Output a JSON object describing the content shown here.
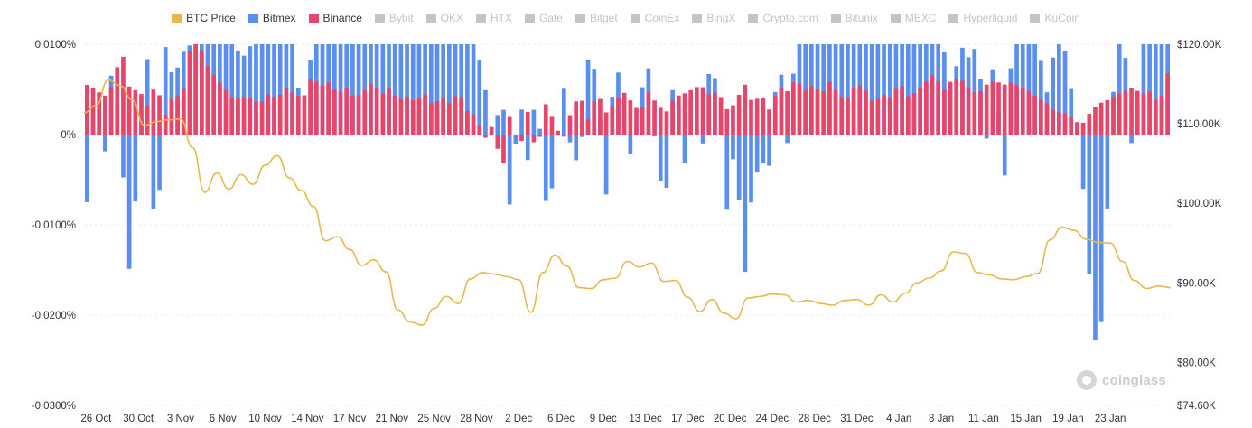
{
  "chart_data": {
    "type": "bar+line",
    "legend": [
      {
        "name": "BTC Price",
        "color": "#e8b84a",
        "active": true
      },
      {
        "name": "Bitmex",
        "color": "#5a8ff0",
        "active": true
      },
      {
        "name": "Binance",
        "color": "#e8456a",
        "active": true
      },
      {
        "name": "Bybit",
        "color": "#c4c4c4",
        "active": false
      },
      {
        "name": "OKX",
        "color": "#c4c4c4",
        "active": false
      },
      {
        "name": "HTX",
        "color": "#c4c4c4",
        "active": false
      },
      {
        "name": "Gate",
        "color": "#c4c4c4",
        "active": false
      },
      {
        "name": "Bitget",
        "color": "#c4c4c4",
        "active": false
      },
      {
        "name": "CoinEx",
        "color": "#c4c4c4",
        "active": false
      },
      {
        "name": "BingX",
        "color": "#c4c4c4",
        "active": false
      },
      {
        "name": "Crypto.com",
        "color": "#c4c4c4",
        "active": false
      },
      {
        "name": "Bitunix",
        "color": "#c4c4c4",
        "active": false
      },
      {
        "name": "MEXC",
        "color": "#c4c4c4",
        "active": false
      },
      {
        "name": "Hyperliquid",
        "color": "#c4c4c4",
        "active": false
      },
      {
        "name": "KuCoin",
        "color": "#c4c4c4",
        "active": false
      }
    ],
    "left_axis": {
      "ticks": [
        {
          "value": 0.01,
          "label": "0.0100%"
        },
        {
          "value": 0,
          "label": "0%"
        },
        {
          "value": -0.01,
          "label": "-0.0100%"
        },
        {
          "value": -0.02,
          "label": "-0.0200%"
        },
        {
          "value": -0.03,
          "label": "-0.0300%"
        }
      ],
      "range": [
        -0.03,
        0.01
      ]
    },
    "right_axis": {
      "ticks": [
        {
          "value": 120,
          "label": "$120.00K"
        },
        {
          "value": 110,
          "label": "$110.00K"
        },
        {
          "value": 100,
          "label": "$100.00K"
        },
        {
          "value": 90,
          "label": "$90.00K"
        },
        {
          "value": 80,
          "label": "$80.00K"
        },
        {
          "value": 74.6,
          "label": "$74.60K"
        }
      ],
      "range": [
        74.6,
        120
      ]
    },
    "x_labels": [
      "26 Oct",
      "30 Oct",
      "3 Nov",
      "6 Nov",
      "10 Nov",
      "14 Nov",
      "17 Nov",
      "21 Nov",
      "25 Nov",
      "28 Nov",
      "2 Dec",
      "6 Dec",
      "9 Dec",
      "13 Dec",
      "17 Dec",
      "20 Dec",
      "24 Dec",
      "28 Dec",
      "31 Dec",
      "4 Jan",
      "8 Jan",
      "11 Jan",
      "15 Jan",
      "19 Jan",
      "23 Jan"
    ],
    "x_start": "2025-10-25",
    "x_end": "2026-01-23",
    "grid": true,
    "bitmex_key": [
      -0.0075,
      0.0085,
      -0.003,
      0.009,
      -0.002,
      -0.0165,
      -0.001,
      0.0085,
      -0.016,
      0.01,
      0.006,
      0.009,
      0.01,
      0.01,
      0.01,
      0.01,
      0.01,
      0.01,
      0.0085,
      0.01,
      0.01,
      0.01,
      0.01,
      0.01,
      0.01,
      -0.001,
      0.01,
      0.01,
      0.01,
      0.01,
      0.01,
      0.01,
      0.01,
      0.01,
      0.01,
      0.01,
      0.01,
      0.01,
      0.01,
      0.01,
      0.01,
      0.01,
      0.01,
      0.01,
      0.01,
      0.01,
      0.0055,
      -0.001,
      0.0055,
      -0.0095,
      0.005,
      -0.003,
      0.0055,
      -0.0075,
      -0.0055,
      0.0065,
      -0.002,
      -0.0035,
      0.0088,
      0.0065,
      -0.0075,
      0.008,
      0.0055,
      -0.0035,
      0.0045,
      0.0075,
      -0.0045,
      -0.0065,
      0.009,
      -0.0045,
      0.0055,
      -0.0035,
      0.0075,
      0.0055,
      -0.0085,
      -0.0005,
      -0.0165,
      -0.0055,
      -0.003,
      -0.0035,
      0.01,
      -0.001,
      0.01,
      0.01,
      0.01,
      0.01,
      0.01,
      0.01,
      0.01,
      0.01,
      0.01,
      0.01,
      0.01,
      0.01,
      0.01,
      0.01,
      0.01,
      0.01,
      0.01,
      0.01,
      0.0045,
      0.01,
      0.0085,
      0.01,
      -0.001,
      0.01,
      -0.007,
      0.01,
      0.01,
      0.01,
      0.01,
      0.0045,
      0.01,
      0.01,
      0.004,
      -0.003,
      -0.0165,
      -0.0265,
      -0.0085,
      0.01,
      0.01,
      -0.0035,
      0.01,
      0.01,
      0.01,
      0.01
    ],
    "binance_key": [
      0.0055,
      0.005,
      0.0042,
      0.0055,
      0.0095,
      0.0048,
      0.005,
      0.0032,
      0.0058,
      0.002,
      0.0045,
      0.004,
      0.01,
      0.01,
      0.0075,
      0.0062,
      0.005,
      0.0038,
      0.0042,
      0.004,
      0.0034,
      0.0045,
      0.004,
      0.0052,
      0.0045,
      0.004,
      0.0065,
      0.0053,
      0.0058,
      0.0045,
      0.0052,
      0.004,
      0.0048,
      0.0058,
      0.0044,
      0.0052,
      0.0038,
      0.0042,
      0.0036,
      0.0046,
      0.0032,
      0.0042,
      0.0034,
      0.0048,
      0.0026,
      0.002,
      -0.0005,
      0.0012,
      -0.0045,
      0.0028,
      -0.002,
      0.0026,
      -0.0025,
      0.0035,
      0.0015,
      -0.0008,
      0.0026,
      0.0045,
      0.0016,
      0.0048,
      0.0024,
      0.0034,
      0.0048,
      0.0036,
      0.0024,
      0.0048,
      0.0032,
      0.0025,
      0.0042,
      0.0045,
      0.005,
      0.0055,
      0.0044,
      0.0048,
      0.0028,
      0.0034,
      0.0058,
      0.0034,
      0.0045,
      0.0026,
      0.0054,
      0.0048,
      0.0062,
      0.0048,
      0.0055,
      0.0045,
      0.006,
      0.0042,
      0.004,
      0.0058,
      0.005,
      0.0034,
      0.0045,
      0.004,
      0.0058,
      0.0042,
      0.0048,
      0.0058,
      0.0068,
      0.0048,
      0.006,
      0.0062,
      0.0052,
      0.0044,
      0.0055,
      0.006,
      0.0055,
      0.0058,
      0.0052,
      0.0048,
      0.004,
      0.0035,
      0.0025,
      0.0024,
      0.0018,
      0.001,
      0.0024,
      0.0034,
      0.0038,
      0.0044,
      0.0048,
      0.0052,
      0.0045,
      0.0048,
      0.0032,
      0.0068
    ],
    "price_key_date_K": [
      [
        "2025-10-25",
        111.4
      ],
      [
        "2025-10-26",
        112.3
      ],
      [
        "2025-10-27",
        115.5
      ],
      [
        "2025-10-28",
        114.8
      ],
      [
        "2025-10-29",
        113.0
      ],
      [
        "2025-10-30",
        109.8
      ],
      [
        "2025-10-31",
        110.3
      ],
      [
        "2025-11-01",
        110.5
      ],
      [
        "2025-11-02",
        110.6
      ],
      [
        "2025-11-03",
        107.0
      ],
      [
        "2025-11-04",
        101.4
      ],
      [
        "2025-11-05",
        103.8
      ],
      [
        "2025-11-06",
        101.8
      ],
      [
        "2025-11-07",
        103.6
      ],
      [
        "2025-11-08",
        102.4
      ],
      [
        "2025-11-09",
        104.8
      ],
      [
        "2025-11-10",
        106.0
      ],
      [
        "2025-11-11",
        103.2
      ],
      [
        "2025-11-12",
        101.6
      ],
      [
        "2025-11-13",
        99.6
      ],
      [
        "2025-11-14",
        95.3
      ],
      [
        "2025-11-15",
        95.8
      ],
      [
        "2025-11-16",
        94.2
      ],
      [
        "2025-11-17",
        92.2
      ],
      [
        "2025-11-18",
        92.9
      ],
      [
        "2025-11-19",
        91.4
      ],
      [
        "2025-11-20",
        86.6
      ],
      [
        "2025-11-21",
        85.1
      ],
      [
        "2025-11-22",
        84.7
      ],
      [
        "2025-11-23",
        86.8
      ],
      [
        "2025-11-24",
        88.3
      ],
      [
        "2025-11-25",
        87.4
      ],
      [
        "2025-11-26",
        90.5
      ],
      [
        "2025-11-27",
        91.3
      ],
      [
        "2025-11-28",
        91.1
      ],
      [
        "2025-11-29",
        90.8
      ],
      [
        "2025-11-30",
        90.4
      ],
      [
        "2025-12-01",
        86.3
      ],
      [
        "2025-12-02",
        91.3
      ],
      [
        "2025-12-03",
        93.5
      ],
      [
        "2025-12-04",
        92.1
      ],
      [
        "2025-12-05",
        89.4
      ],
      [
        "2025-12-06",
        89.3
      ],
      [
        "2025-12-07",
        90.4
      ],
      [
        "2025-12-08",
        90.6
      ],
      [
        "2025-12-09",
        92.7
      ],
      [
        "2025-12-10",
        92.0
      ],
      [
        "2025-12-11",
        92.5
      ],
      [
        "2025-12-12",
        90.2
      ],
      [
        "2025-12-13",
        90.3
      ],
      [
        "2025-12-14",
        88.2
      ],
      [
        "2025-12-15",
        86.4
      ],
      [
        "2025-12-16",
        87.9
      ],
      [
        "2025-12-17",
        86.2
      ],
      [
        "2025-12-18",
        85.5
      ],
      [
        "2025-12-19",
        88.1
      ],
      [
        "2025-12-20",
        88.3
      ],
      [
        "2025-12-21",
        88.6
      ],
      [
        "2025-12-22",
        88.5
      ],
      [
        "2025-12-23",
        87.6
      ],
      [
        "2025-12-24",
        87.8
      ],
      [
        "2025-12-25",
        87.4
      ],
      [
        "2025-12-26",
        87.2
      ],
      [
        "2025-12-27",
        87.8
      ],
      [
        "2025-12-28",
        87.9
      ],
      [
        "2025-12-29",
        87.2
      ],
      [
        "2025-12-30",
        88.5
      ],
      [
        "2025-12-31",
        87.6
      ],
      [
        "2026-01-01",
        88.7
      ],
      [
        "2026-01-02",
        90.0
      ],
      [
        "2026-01-03",
        90.6
      ],
      [
        "2026-01-04",
        91.5
      ],
      [
        "2026-01-05",
        93.9
      ],
      [
        "2026-01-06",
        93.7
      ],
      [
        "2026-01-07",
        91.3
      ],
      [
        "2026-01-08",
        91.0
      ],
      [
        "2026-01-09",
        90.5
      ],
      [
        "2026-01-10",
        90.4
      ],
      [
        "2026-01-11",
        90.8
      ],
      [
        "2026-01-12",
        91.2
      ],
      [
        "2026-01-13",
        95.4
      ],
      [
        "2026-01-14",
        97.0
      ],
      [
        "2026-01-15",
        96.6
      ],
      [
        "2026-01-16",
        95.5
      ],
      [
        "2026-01-17",
        95.1
      ],
      [
        "2026-01-18",
        95.0
      ],
      [
        "2026-01-19",
        92.7
      ],
      [
        "2026-01-20",
        90.3
      ],
      [
        "2026-01-21",
        89.3
      ],
      [
        "2026-01-22",
        89.6
      ],
      [
        "2026-01-23",
        89.4
      ]
    ]
  },
  "watermark": "coinglass"
}
